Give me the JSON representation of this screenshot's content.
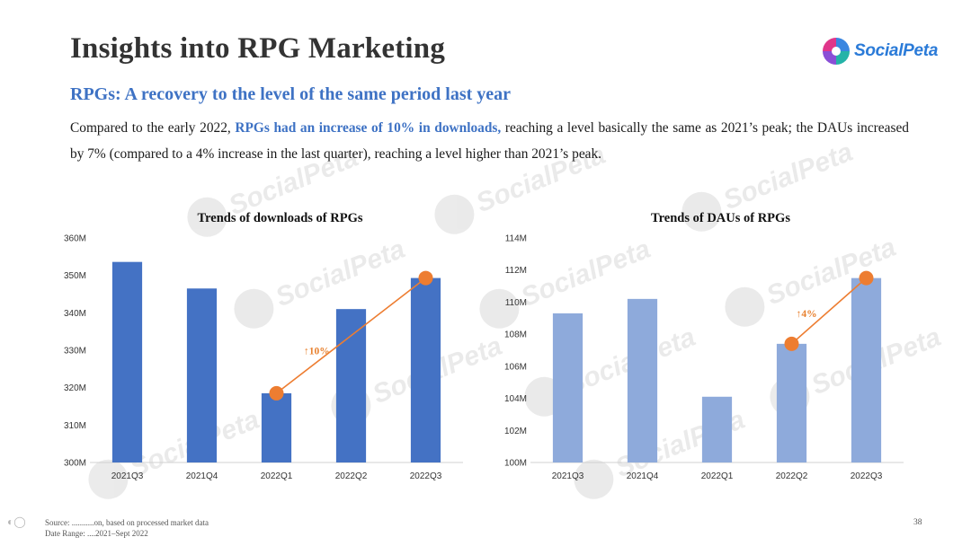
{
  "slide": {
    "title": "Insights into RPG Marketing",
    "subtitle": "RPGs: A recovery to the level of the same period last year",
    "paragraph": {
      "part1": "Compared to the early 2022, ",
      "highlight": "RPGs had an increase of 10% in downloads,",
      "part2": " reaching a level basically the same as 2021’s peak; the DAUs increased by 7% (compared to a 4% increase in the last quarter), reaching a level higher than 2021’s peak."
    },
    "logo_text": "SocialPeta",
    "footer": {
      "source": "Source: ...........on, based on processed market data",
      "date_range": "Date Range: ....2021–Sept 2022"
    },
    "page_number": "38",
    "watermark_text": "SocialPeta"
  },
  "colors": {
    "bar_downloads": "#4472c4",
    "bar_daus": "#8eaadb",
    "trend": "#ed7d31",
    "title": "#333333",
    "accent": "#3e72c4"
  },
  "chart_data": [
    {
      "type": "bar",
      "title": "Trends of downloads of RPGs",
      "categories": [
        "2021Q3",
        "2021Q4",
        "2022Q1",
        "2022Q2",
        "2022Q3"
      ],
      "values": [
        353.6,
        346.5,
        318.5,
        341.0,
        349.3
      ],
      "ylim": [
        300,
        360
      ],
      "yticks": [
        300,
        310,
        320,
        330,
        340,
        350,
        360
      ],
      "ytick_labels": [
        "300M",
        "310M",
        "320M",
        "330M",
        "340M",
        "350M",
        "360M"
      ],
      "grid": false,
      "trend": {
        "from": "2022Q1",
        "to": "2022Q3",
        "from_value": 318.5,
        "to_value": 349.3,
        "label": "↑10%"
      }
    },
    {
      "type": "bar",
      "title": "Trends of DAUs of RPGs",
      "categories": [
        "2021Q3",
        "2021Q4",
        "2022Q1",
        "2022Q2",
        "2022Q3"
      ],
      "values": [
        109.3,
        110.2,
        104.1,
        107.4,
        111.5
      ],
      "ylim": [
        100,
        114
      ],
      "yticks": [
        100,
        102,
        104,
        106,
        108,
        110,
        112,
        114
      ],
      "ytick_labels": [
        "100M",
        "102M",
        "104M",
        "106M",
        "108M",
        "110M",
        "112M",
        "114M"
      ],
      "grid": false,
      "trend": {
        "from": "2022Q2",
        "to": "2022Q3",
        "from_value": 107.4,
        "to_value": 111.5,
        "label": "↑4%"
      }
    }
  ]
}
